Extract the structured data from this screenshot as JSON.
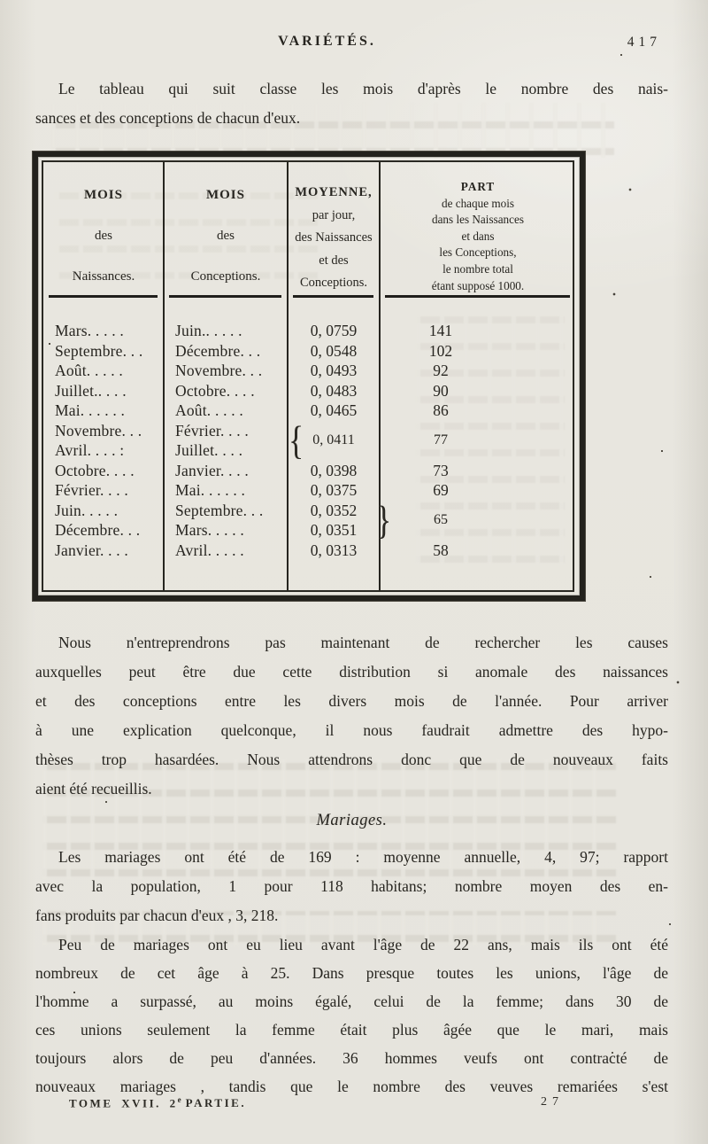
{
  "header": {
    "title": "VARIÉTÉS.",
    "page_number": "417"
  },
  "intro": {
    "lines": [
      "Le tableau qui suit classe les mois d'après le nombre des nais-",
      "sances et des conceptions de chacun d'eux."
    ]
  },
  "table": {
    "col1_header": [
      "MOIS",
      "des",
      "Naissances."
    ],
    "col2_header": [
      "MOIS",
      "des",
      "Conceptions."
    ],
    "col3_header": [
      "MOYENNE,",
      "par jour,",
      "des Naissances",
      "et des",
      "Conceptions."
    ],
    "col4_header": [
      "PART",
      "de chaque mois",
      "dans les Naissances",
      "et dans",
      "les Conceptions,",
      "le nombre total",
      "étant supposé 1000."
    ],
    "naissances": [
      "Mars. . . . .",
      "Septembre. . .",
      "Août. . . . .",
      "Juillet.. . . .",
      "Mai. . . . . .",
      "Novembre. . .",
      "Avril. . . . :",
      "Octobre. . . .",
      "Février. . . .",
      "Juin. . . . .",
      "Décembre. . .",
      "Janvier. . . ."
    ],
    "conceptions": [
      "Juin.. . . . .",
      "Décembre. . .",
      "Novembre. . .",
      "Octobre. . . .",
      "Août. . . . .",
      "Février. . . .",
      "Juillet. . . .",
      "Janvier. . . .",
      "Mai. . . . . .",
      "Septembre. . .",
      "Mars. . . . .",
      "Avril. . . . ."
    ],
    "moyennes": [
      "0, 0759",
      "0, 0548",
      "0, 0493",
      "0, 0483",
      "0, 0465",
      "0, 0411",
      "0, 0398",
      "0, 0375",
      "0, 0352",
      "0, 0351",
      "0, 0313"
    ],
    "parts": [
      "141",
      "102",
      "92",
      "90",
      "86",
      "77",
      "73",
      "69",
      "65",
      "58"
    ],
    "brace_open": "{",
    "brace_close": "}"
  },
  "after_table": {
    "lines": [
      "Nous n'entreprendrons pas maintenant de rechercher les causes",
      "auxquelles peut être due cette distribution si anomale des naissances",
      "et des conceptions entre les divers mois de l'année. Pour arriver",
      "à une explication quelconque, il nous faudrait admettre des hypo-",
      "thèses trop hasardées. Nous attendrons donc que de nouveaux faits",
      "aient été recueillis."
    ]
  },
  "mariages": {
    "title": "Mariages.",
    "para1_lines": [
      "Les mariages ont été de 169 : moyenne annuelle, 4, 97; rapport",
      "avec la population, 1 pour 118 habitans; nombre moyen des en-",
      "fans produits par chacun d'eux , 3, 218."
    ],
    "para2_lines": [
      "Peu de mariages ont eu lieu avant l'âge de 22 ans, mais ils ont été",
      "nombreux de cet âge à 25. Dans presque toutes les unions, l'âge de",
      "l'homme a surpassé, au moins égalé, celui de la femme; dans 30 de",
      "ces unions seulement la femme était plus âgée que le mari, mais",
      "toujours alors de peu d'années. 36 hommes veufs ont contracté de",
      "nouveaux mariages , tandis que le nombre des veuves remariées s'est"
    ]
  },
  "footer": {
    "tome": "TOME XVII. 2",
    "superscript": "e",
    "partie": "PARTIE.",
    "signature": "27"
  }
}
